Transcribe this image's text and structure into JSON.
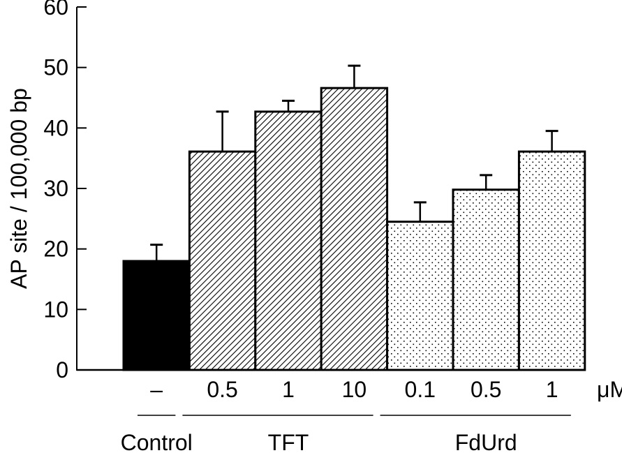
{
  "chart_data": {
    "type": "bar",
    "title": "",
    "xlabel": "",
    "ylabel": "AP site / 100,000 bp",
    "ylim": [
      0,
      60
    ],
    "yticks": [
      "0",
      "10",
      "20",
      "30",
      "40",
      "50",
      "60"
    ],
    "unit_label": "μM",
    "categories": [
      "–",
      "0.5",
      "1",
      "10",
      "0.1",
      "0.5",
      "1"
    ],
    "groups": [
      {
        "name": "Control",
        "indices": [
          0
        ],
        "pattern": "solid"
      },
      {
        "name": "TFT",
        "indices": [
          1,
          2,
          3
        ],
        "pattern": "hatch"
      },
      {
        "name": "FdUrd",
        "indices": [
          4,
          5,
          6
        ],
        "pattern": "dots"
      }
    ],
    "values": [
      18.0,
      36.1,
      42.7,
      46.6,
      24.5,
      29.8,
      36.1
    ],
    "error_upper": [
      20.7,
      42.7,
      44.5,
      50.3,
      27.7,
      32.2,
      39.5
    ],
    "grid": false
  }
}
